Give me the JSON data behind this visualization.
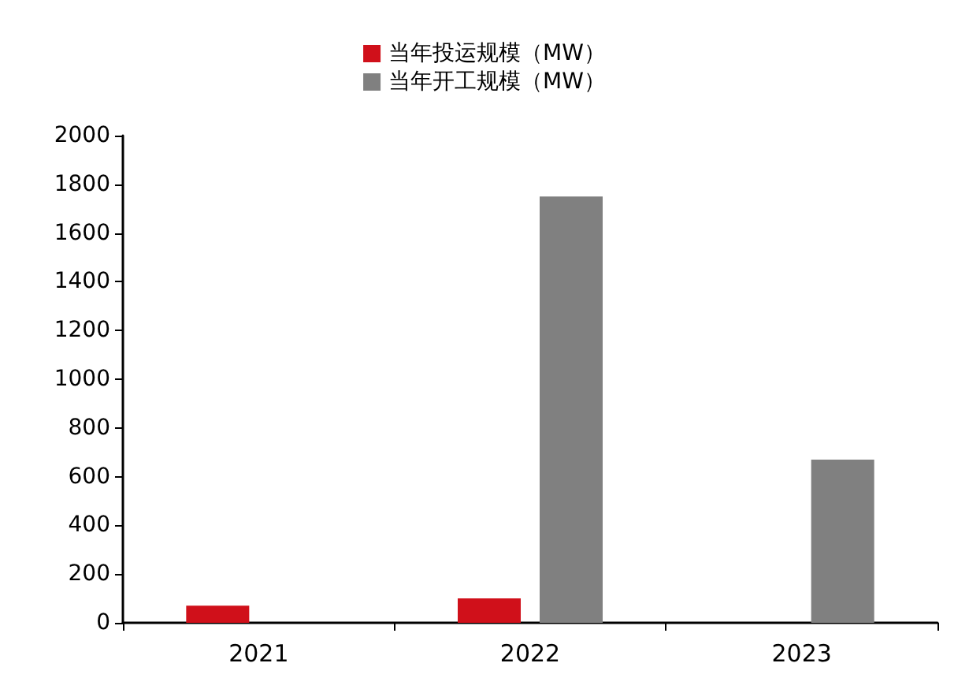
{
  "chart_data": {
    "type": "bar",
    "categories": [
      "2021",
      "2022",
      "2023"
    ],
    "series": [
      {
        "name": "当年投运规模（MW）",
        "color": "#d0101a",
        "values": [
          70,
          100,
          null
        ]
      },
      {
        "name": "当年开工规模（MW）",
        "color": "#808080",
        "values": [
          null,
          1750,
          670
        ]
      }
    ],
    "ylim": [
      0,
      2000
    ],
    "yticks": [
      0,
      200,
      400,
      600,
      800,
      1000,
      1200,
      1400,
      1600,
      1800,
      2000
    ],
    "grid": false,
    "legend": "top"
  }
}
